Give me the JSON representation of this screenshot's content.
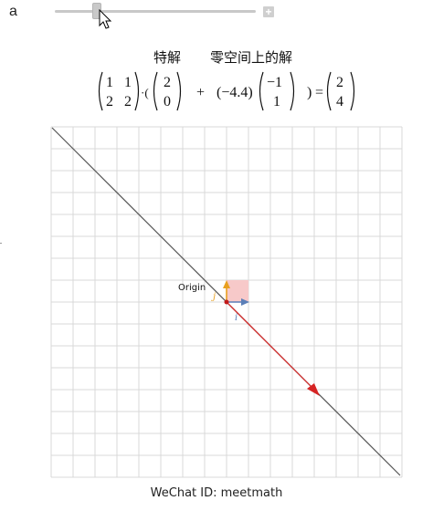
{
  "slider": {
    "label": "a",
    "plus_label": "+",
    "value_fraction": 0.21
  },
  "headings": {
    "particular": "特解",
    "null_space": "零空间上的解"
  },
  "equation": {
    "matrix": [
      [
        "1",
        "1"
      ],
      [
        "2",
        "2"
      ]
    ],
    "dot": "·(",
    "particular": [
      "2",
      "0"
    ],
    "plus": "+",
    "coefficient": "(−4.4)",
    "null_vector": [
      "−1",
      "1"
    ],
    "close_paren": ")",
    "equals": "=",
    "result": [
      "2",
      "4"
    ]
  },
  "plot": {
    "origin_label": "Origin",
    "i_label": "i",
    "j_label": "j",
    "colors": {
      "grid": "#d9d9d9",
      "line": "#555555",
      "vector": "#d62424",
      "i_vector": "#5b7fb8",
      "j_vector": "#e8a020",
      "unit_square": "#f7c9c9"
    }
  },
  "footer": {
    "text": "WeChat ID: meetmath"
  }
}
